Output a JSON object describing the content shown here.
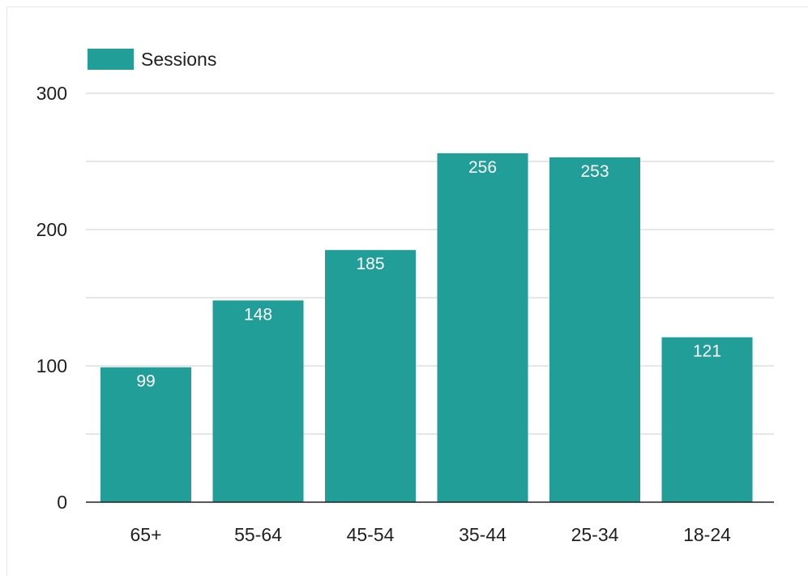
{
  "chart_data": {
    "type": "bar",
    "categories": [
      "65+",
      "55-64",
      "45-54",
      "35-44",
      "25-34",
      "18-24"
    ],
    "series": [
      {
        "name": "Sessions",
        "values": [
          99,
          148,
          185,
          256,
          253,
          121
        ]
      }
    ],
    "y_ticks": [
      "0",
      "100",
      "200",
      "300"
    ],
    "ylim": [
      0,
      300
    ],
    "grid": true,
    "legend_position": "top-left",
    "bar_color": "#219e97",
    "grid_color": "#cccccc",
    "axis_color": "#212121"
  }
}
